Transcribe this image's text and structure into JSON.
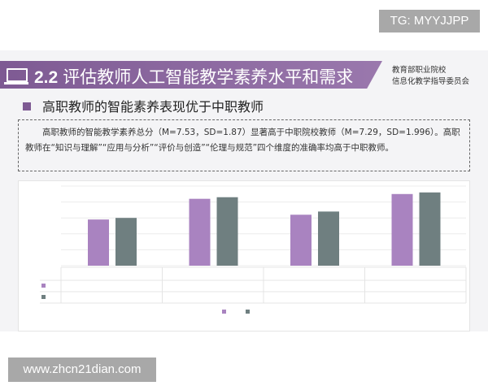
{
  "watermarks": {
    "top": "TG: MYYJJPP",
    "bottom": "www.zhcn21dian.com"
  },
  "header": {
    "number": "2.2",
    "title": "评估教师人工智能教学素养水平和需求",
    "org_line1": "教育部职业院校",
    "org_line2": "信息化教学指导委员会"
  },
  "subtitle": "高职教师的智能素养表现优于中职教师",
  "summary": "高职教师的智能教学素养总分（M=7.53，SD=1.87）显著高于中职院校教师（M=7.29，SD=1.996）。高职教师在“知识与理解”“应用与分析”“评价与创造”“伦理与规范”四个维度的准确率均高于中职教师。",
  "colors": {
    "accent": "#7e5a93",
    "series1": "#a983c0",
    "series2": "#6f7f80"
  },
  "chart_data": {
    "type": "bar",
    "categories": [
      "",
      "",
      "",
      ""
    ],
    "series": [
      {
        "name": "",
        "values": [
          2.9,
          4.2,
          3.2,
          4.5
        ]
      },
      {
        "name": "",
        "values": [
          3.0,
          4.3,
          3.4,
          4.6
        ]
      }
    ],
    "ylim": [
      0,
      5
    ],
    "grid": true,
    "legend": "bottom"
  }
}
